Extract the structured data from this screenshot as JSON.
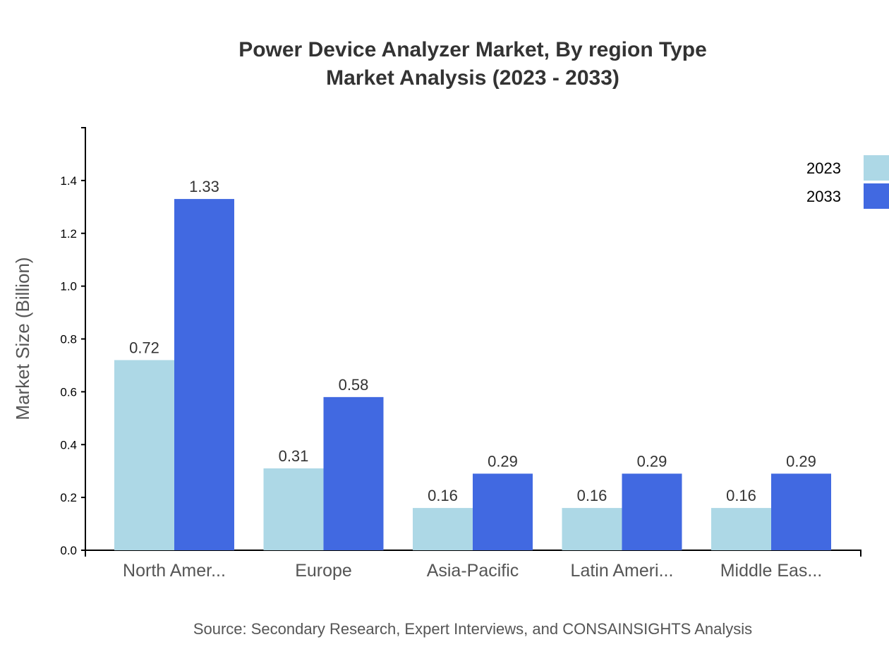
{
  "chart_data": {
    "type": "bar",
    "title": [
      "Power Device Analyzer Market, By region Type",
      "Market Analysis (2023 - 2033)"
    ],
    "xlabel": "",
    "ylabel": "Market Size (Billion)",
    "ylim": [
      0,
      1.6
    ],
    "yticks": [
      "0.0",
      "0.2",
      "0.4",
      "0.6",
      "0.8",
      "1.0",
      "1.2",
      "1.4"
    ],
    "categories": [
      "North Amer...",
      "Europe",
      "Asia-Pacific",
      "Latin Ameri...",
      "Middle Eas..."
    ],
    "series": [
      {
        "name": "2023",
        "color": "#ADD8E6",
        "values": [
          0.72,
          0.31,
          0.16,
          0.16,
          0.16
        ],
        "labels": [
          "0.72",
          "0.31",
          "0.16",
          "0.16",
          "0.16"
        ]
      },
      {
        "name": "2033",
        "color": "#4169E1",
        "values": [
          1.33,
          0.58,
          0.29,
          0.29,
          0.29
        ],
        "labels": [
          "1.33",
          "0.58",
          "0.29",
          "0.29",
          "0.29"
        ]
      }
    ],
    "grid": false,
    "legend": "top-right",
    "source": "Source: Secondary Research, Expert Interviews, and CONSAINSIGHTS Analysis"
  }
}
